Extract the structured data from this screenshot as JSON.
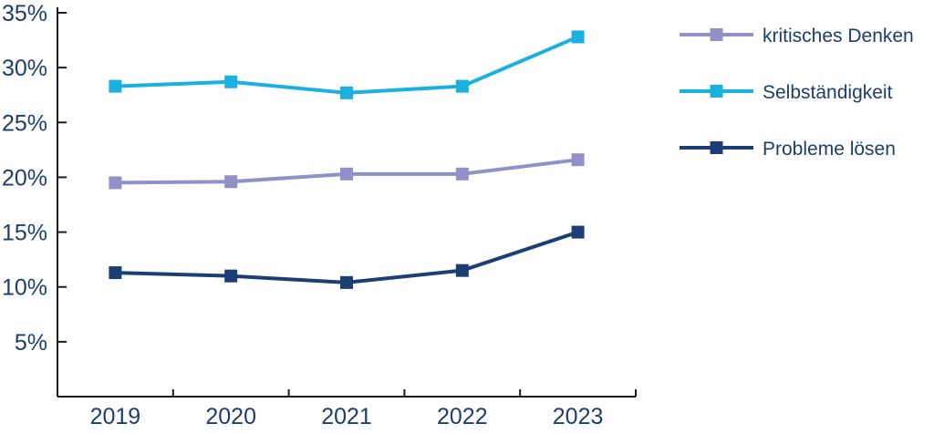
{
  "chart_data": {
    "type": "line",
    "title": "",
    "xlabel": "",
    "ylabel": "",
    "categories": [
      "2019",
      "2020",
      "2021",
      "2022",
      "2023"
    ],
    "ylim": [
      0,
      35
    ],
    "y_ticks": [
      5,
      10,
      15,
      20,
      25,
      30,
      35
    ],
    "y_tick_labels": [
      "5%",
      "10%",
      "15%",
      "20%",
      "25%",
      "30%",
      "35%"
    ],
    "grid": false,
    "legend_position": "right",
    "series": [
      {
        "name": "kritisches Denken",
        "color": "#9190c8",
        "marker": "square",
        "values": [
          19.5,
          19.6,
          20.3,
          20.3,
          21.6
        ]
      },
      {
        "name": "Selbständigkeit",
        "color": "#1ab0e0",
        "marker": "square",
        "values": [
          28.3,
          28.7,
          27.7,
          28.3,
          32.8
        ]
      },
      {
        "name": "Probleme lösen",
        "color": "#1b3f74",
        "marker": "square",
        "values": [
          11.3,
          11.0,
          10.4,
          11.5,
          15.0
        ]
      }
    ],
    "axis_color": "#1b1b1b",
    "text_color": "#1e3d6e"
  }
}
